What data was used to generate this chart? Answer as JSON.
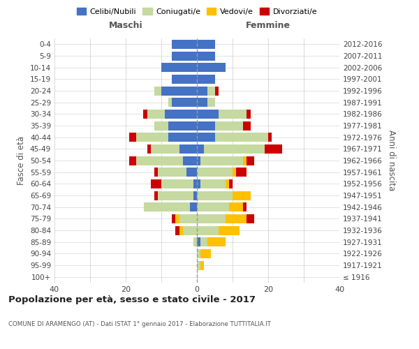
{
  "age_groups": [
    "100+",
    "95-99",
    "90-94",
    "85-89",
    "80-84",
    "75-79",
    "70-74",
    "65-69",
    "60-64",
    "55-59",
    "50-54",
    "45-49",
    "40-44",
    "35-39",
    "30-34",
    "25-29",
    "20-24",
    "15-19",
    "10-14",
    "5-9",
    "0-4"
  ],
  "birth_years": [
    "≤ 1916",
    "1917-1921",
    "1922-1926",
    "1927-1931",
    "1932-1936",
    "1937-1941",
    "1942-1946",
    "1947-1951",
    "1952-1956",
    "1957-1961",
    "1962-1966",
    "1967-1971",
    "1972-1976",
    "1977-1981",
    "1982-1986",
    "1987-1991",
    "1992-1996",
    "1997-2001",
    "2002-2006",
    "2007-2011",
    "2012-2016"
  ],
  "male": {
    "celibi": [
      0,
      0,
      0,
      0,
      0,
      0,
      2,
      1,
      1,
      3,
      4,
      5,
      8,
      8,
      9,
      7,
      10,
      7,
      10,
      7,
      7
    ],
    "coniugati": [
      0,
      0,
      0,
      1,
      4,
      5,
      13,
      10,
      9,
      8,
      13,
      8,
      9,
      4,
      5,
      1,
      2,
      0,
      0,
      0,
      0
    ],
    "vedovi": [
      0,
      0,
      0,
      0,
      1,
      1,
      0,
      0,
      0,
      0,
      0,
      0,
      0,
      0,
      0,
      0,
      0,
      0,
      0,
      0,
      0
    ],
    "divorziati": [
      0,
      0,
      0,
      0,
      1,
      1,
      0,
      1,
      3,
      1,
      2,
      1,
      2,
      0,
      1,
      0,
      0,
      0,
      0,
      0,
      0
    ]
  },
  "female": {
    "nubili": [
      0,
      0,
      0,
      1,
      0,
      0,
      0,
      0,
      1,
      0,
      1,
      2,
      5,
      5,
      6,
      3,
      3,
      5,
      8,
      5,
      5
    ],
    "coniugate": [
      0,
      1,
      1,
      2,
      6,
      8,
      9,
      10,
      7,
      10,
      12,
      17,
      15,
      8,
      8,
      2,
      2,
      0,
      0,
      0,
      0
    ],
    "vedove": [
      0,
      1,
      3,
      5,
      6,
      6,
      4,
      5,
      1,
      1,
      1,
      0,
      0,
      0,
      0,
      0,
      0,
      0,
      0,
      0,
      0
    ],
    "divorziate": [
      0,
      0,
      0,
      0,
      0,
      2,
      1,
      0,
      1,
      3,
      2,
      5,
      1,
      2,
      1,
      0,
      1,
      0,
      0,
      0,
      0
    ]
  },
  "colors": {
    "celibi": "#4472c4",
    "coniugati": "#c5d9a0",
    "vedovi": "#ffc000",
    "divorziati": "#cc0000"
  },
  "xlim": 40,
  "title": "Popolazione per età, sesso e stato civile - 2017",
  "subtitle": "COMUNE DI ARAMENGO (AT) - Dati ISTAT 1° gennaio 2017 - Elaborazione TUTTITALIA.IT",
  "ylabel": "Fasce di età",
  "ylabel_right": "Anni di nascita",
  "legend_labels": [
    "Celibi/Nubili",
    "Coniugati/e",
    "Vedovi/e",
    "Divorziati/e"
  ],
  "background_color": "#ffffff",
  "grid_color": "#cccccc"
}
